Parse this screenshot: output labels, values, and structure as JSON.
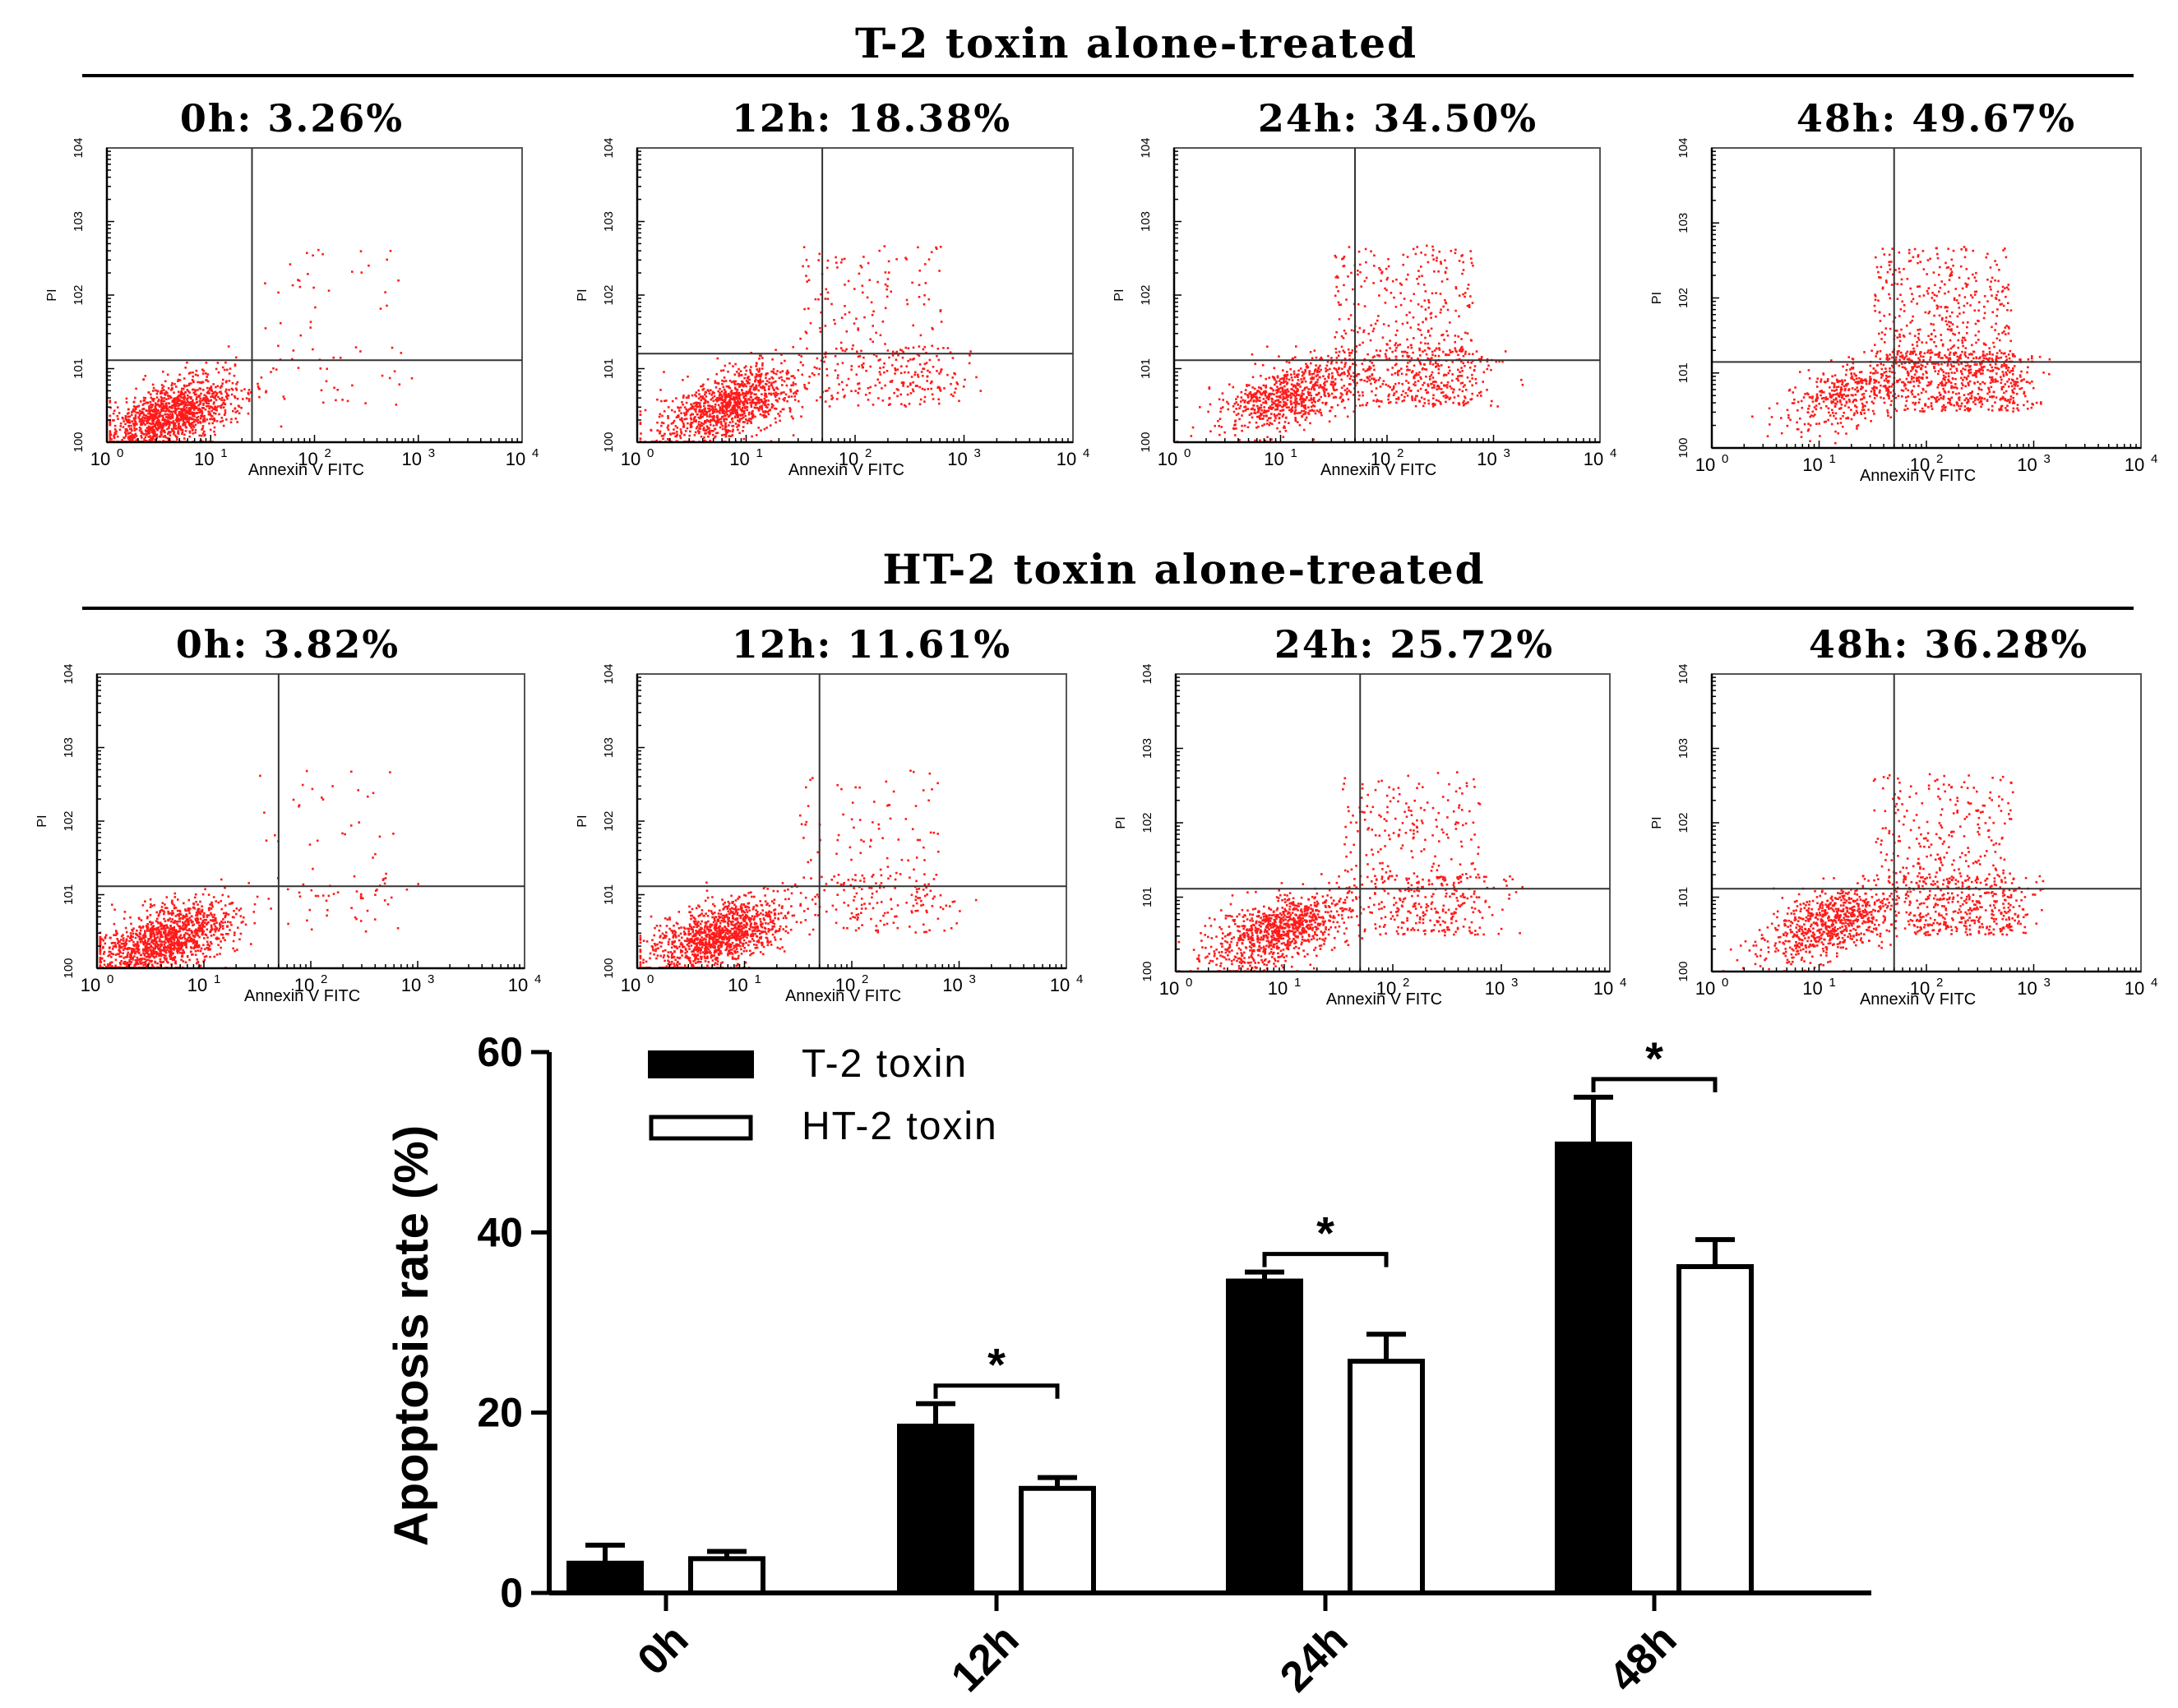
{
  "section_titles": {
    "t2": "T-2 toxin alone-treated",
    "ht2": "HT-2 toxin alone-treated"
  },
  "flow_axis": {
    "x_label": "Annexin V FITC",
    "y_label": "PI",
    "tick_base": "10",
    "tick_exponents": [
      "0",
      "1",
      "2",
      "3",
      "4"
    ]
  },
  "flow_panels": {
    "t2": [
      {
        "title": "0h: 3.26%"
      },
      {
        "title": "12h: 18.38%"
      },
      {
        "title": "24h: 34.50%"
      },
      {
        "title": "48h: 49.67%"
      }
    ],
    "ht2": [
      {
        "title": "0h: 3.82%"
      },
      {
        "title": "12h: 11.61%"
      },
      {
        "title": "24h: 25.72%"
      },
      {
        "title": "48h: 36.28%"
      }
    ]
  },
  "chart_data": [
    {
      "type": "scatter",
      "subtype": "flow-cytometry-quadrant",
      "title": "T-2 toxin alone-treated",
      "xlabel": "Annexin V FITC",
      "ylabel": "PI",
      "xscale": "log",
      "yscale": "log",
      "xlim": [
        1,
        10000
      ],
      "ylim": [
        1,
        10000
      ],
      "gate_x": [
        25,
        50,
        50,
        50
      ],
      "gate_y": [
        13,
        16,
        13,
        14
      ],
      "panels": [
        "0h: 3.26%",
        "12h: 18.38%",
        "24h: 34.50%",
        "48h: 49.67%"
      ],
      "apoptosis_percent": [
        3.26,
        18.38,
        34.5,
        49.67
      ],
      "point_color": "#ff1a1a"
    },
    {
      "type": "scatter",
      "subtype": "flow-cytometry-quadrant",
      "title": "HT-2 toxin alone-treated",
      "xlabel": "Annexin V FITC",
      "ylabel": "PI",
      "xscale": "log",
      "yscale": "log",
      "xlim": [
        1,
        10000
      ],
      "ylim": [
        1,
        10000
      ],
      "gate_x": [
        50,
        50,
        50,
        50
      ],
      "gate_y": [
        13,
        13,
        13,
        13
      ],
      "panels": [
        "0h: 3.82%",
        "12h: 11.61%",
        "24h: 25.72%",
        "48h: 36.28%"
      ],
      "apoptosis_percent": [
        3.82,
        11.61,
        25.72,
        36.28
      ],
      "point_color": "#ff1a1a"
    },
    {
      "type": "bar",
      "title": "",
      "xlabel": "",
      "ylabel": "Apoptosis rate (%)",
      "ylim": [
        0,
        60
      ],
      "yticks": [
        0,
        20,
        40,
        60
      ],
      "categories": [
        "0h",
        "12h",
        "24h",
        "48h"
      ],
      "series": [
        {
          "name": "T-2 toxin",
          "values": [
            3.3,
            18.5,
            34.6,
            49.8
          ],
          "errors": [
            2.0,
            2.5,
            1.0,
            5.2
          ],
          "fill": "#000000"
        },
        {
          "name": "HT-2 toxin",
          "values": [
            3.8,
            11.6,
            25.7,
            36.2
          ],
          "errors": [
            0.8,
            1.2,
            3.0,
            3.0
          ],
          "fill": "#ffffff"
        }
      ],
      "significance": [
        {
          "category": "12h",
          "label": "*"
        },
        {
          "category": "24h",
          "label": "*"
        },
        {
          "category": "48h",
          "label": "*"
        }
      ]
    }
  ]
}
